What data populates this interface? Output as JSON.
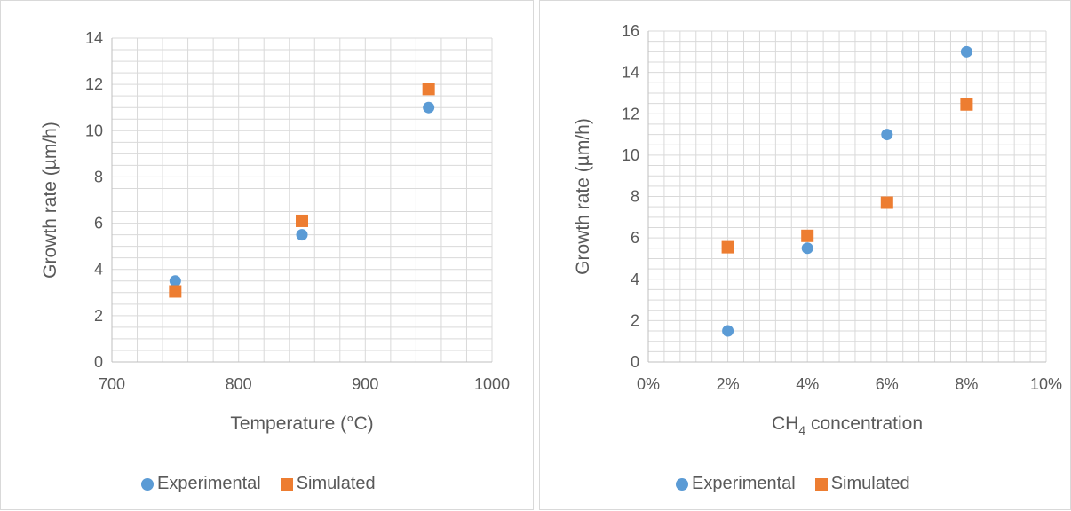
{
  "chart_data": [
    {
      "type": "scatter",
      "xlabel": "Temperature (°C)",
      "ylabel": "Growth rate (µm/h)",
      "xlim": [
        700,
        1000
      ],
      "ylim": [
        0,
        14
      ],
      "x_ticks": [
        700,
        800,
        900,
        1000
      ],
      "y_ticks": [
        0,
        2,
        4,
        6,
        8,
        10,
        12,
        14
      ],
      "grid": true,
      "legend_position": "bottom",
      "series": [
        {
          "name": "Experimental",
          "marker": "circle",
          "color": "#5b9bd5",
          "points": [
            [
              750,
              3.5
            ],
            [
              850,
              5.5
            ],
            [
              950,
              11.0
            ]
          ]
        },
        {
          "name": "Simulated",
          "marker": "square",
          "color": "#ed7d31",
          "points": [
            [
              750,
              3.05
            ],
            [
              850,
              6.1
            ],
            [
              950,
              11.8
            ]
          ]
        }
      ]
    },
    {
      "type": "scatter",
      "xlabel_main": "CH",
      "xlabel_sub": "4",
      "xlabel_rest": " concentration",
      "ylabel": "Growth rate (µm/h)",
      "xlim": [
        0,
        10
      ],
      "ylim": [
        0,
        16
      ],
      "x_tick_labels": [
        "0%",
        "2%",
        "4%",
        "6%",
        "8%",
        "10%"
      ],
      "y_ticks": [
        0,
        2,
        4,
        6,
        8,
        10,
        12,
        14,
        16
      ],
      "grid": true,
      "legend_position": "bottom",
      "series": [
        {
          "name": "Experimental",
          "marker": "circle",
          "color": "#5b9bd5",
          "points": [
            [
              2,
              1.5
            ],
            [
              4,
              5.5
            ],
            [
              6,
              11.0
            ],
            [
              8,
              15.0
            ]
          ]
        },
        {
          "name": "Simulated",
          "marker": "square",
          "color": "#ed7d31",
          "points": [
            [
              2,
              5.55
            ],
            [
              4,
              6.1
            ],
            [
              6,
              7.7
            ],
            [
              8,
              12.45
            ]
          ]
        }
      ]
    }
  ]
}
